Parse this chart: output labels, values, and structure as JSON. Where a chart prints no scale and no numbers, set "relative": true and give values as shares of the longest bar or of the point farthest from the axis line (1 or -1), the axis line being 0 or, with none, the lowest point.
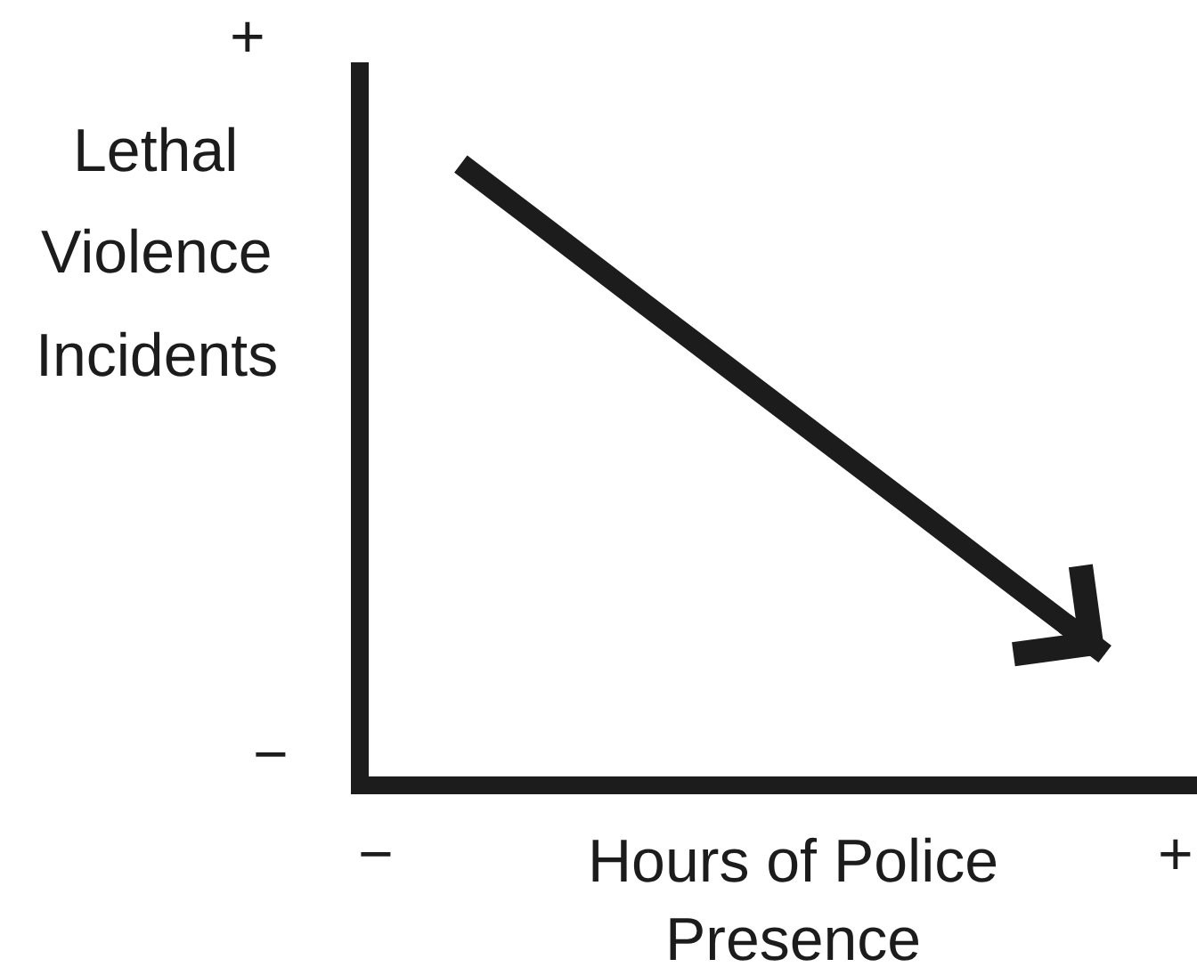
{
  "chart_data": {
    "type": "line",
    "relative": true,
    "categories": [
      null,
      null,
      null,
      null,
      null,
      null,
      null,
      null,
      null,
      null
    ],
    "series": [
      {
        "color": "#1c1c1c",
        "values": [
          null,
          1,
          0.886,
          0.771,
          0.657,
          0.543,
          0.429,
          0.314,
          0.2,
          null
        ]
      }
    ],
    "xlabel": "Hours of Police\nPresence",
    "ylabel": "Lethal\nViolence\nIncidents",
    "annotations": [
      "+",
      "−",
      "−",
      "+"
    ]
  }
}
